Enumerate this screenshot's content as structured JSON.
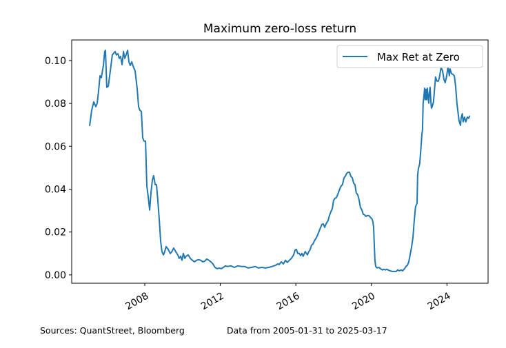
{
  "chart_data": {
    "type": "line",
    "title": "Maximum zero-loss return",
    "xlabel": "",
    "ylabel": "",
    "xlim": [
      2004.13,
      2026.18
    ],
    "ylim": [
      -0.0039,
      0.1096
    ],
    "xticks": [
      2008,
      2012,
      2016,
      2020,
      2024
    ],
    "xtick_labels": [
      "2008",
      "2012",
      "2016",
      "2020",
      "2024"
    ],
    "yticks": [
      0.0,
      0.02,
      0.04,
      0.06,
      0.08,
      0.1
    ],
    "ytick_labels": [
      "0.00",
      "0.02",
      "0.04",
      "0.06",
      "0.08",
      "0.10"
    ],
    "grid": false,
    "legend_position": "top-right",
    "series": [
      {
        "name": "Max Ret at Zero",
        "color": "#1f77b4",
        "x": [
          2005.08,
          2005.19,
          2005.3,
          2005.41,
          2005.48,
          2005.55,
          2005.63,
          2005.7,
          2005.81,
          2005.88,
          2005.92,
          2005.99,
          2006.07,
          2006.14,
          2006.21,
          2006.28,
          2006.36,
          2006.43,
          2006.5,
          2006.58,
          2006.65,
          2006.72,
          2006.8,
          2006.87,
          2006.94,
          2007.01,
          2007.09,
          2007.16,
          2007.23,
          2007.31,
          2007.38,
          2007.49,
          2007.6,
          2007.67,
          2007.74,
          2007.82,
          2007.89,
          2007.96,
          2008.04,
          2008.11,
          2008.18,
          2008.26,
          2008.33,
          2008.4,
          2008.47,
          2008.55,
          2008.62,
          2008.69,
          2008.77,
          2008.84,
          2008.91,
          2008.99,
          2009.06,
          2009.13,
          2009.24,
          2009.35,
          2009.42,
          2009.53,
          2009.64,
          2009.75,
          2009.82,
          2009.9,
          2009.97,
          2010.04,
          2010.12,
          2010.19,
          2010.3,
          2010.41,
          2010.52,
          2010.63,
          2010.74,
          2010.85,
          2010.96,
          2011.07,
          2011.18,
          2011.28,
          2011.39,
          2011.5,
          2011.61,
          2011.72,
          2011.83,
          2011.94,
          2012.05,
          2012.16,
          2012.27,
          2012.38,
          2012.56,
          2012.74,
          2012.93,
          2013.11,
          2013.29,
          2013.47,
          2013.66,
          2013.84,
          2014.02,
          2014.2,
          2014.39,
          2014.57,
          2014.75,
          2014.93,
          2015.04,
          2015.12,
          2015.23,
          2015.34,
          2015.45,
          2015.55,
          2015.66,
          2015.77,
          2015.88,
          2015.96,
          2016.03,
          2016.1,
          2016.18,
          2016.25,
          2016.32,
          2016.39,
          2016.5,
          2016.61,
          2016.69,
          2016.76,
          2016.83,
          2016.91,
          2016.98,
          2017.09,
          2017.2,
          2017.27,
          2017.38,
          2017.45,
          2017.53,
          2017.6,
          2017.71,
          2017.78,
          2017.85,
          2017.93,
          2018.0,
          2018.07,
          2018.15,
          2018.22,
          2018.33,
          2018.4,
          2018.47,
          2018.55,
          2018.62,
          2018.69,
          2018.77,
          2018.84,
          2018.91,
          2018.99,
          2019.06,
          2019.13,
          2019.2,
          2019.28,
          2019.35,
          2019.42,
          2019.5,
          2019.57,
          2019.64,
          2019.72,
          2019.79,
          2019.86,
          2019.93,
          2020.04,
          2020.08,
          2020.12,
          2020.15,
          2020.19,
          2020.23,
          2020.3,
          2020.37,
          2020.45,
          2020.52,
          2020.59,
          2020.66,
          2020.74,
          2020.81,
          2020.88,
          2020.99,
          2021.1,
          2021.21,
          2021.32,
          2021.39,
          2021.47,
          2021.58,
          2021.65,
          2021.76,
          2021.83,
          2021.91,
          2021.98,
          2022.05,
          2022.12,
          2022.2,
          2022.27,
          2022.34,
          2022.42,
          2022.45,
          2022.49,
          2022.56,
          2022.64,
          2022.67,
          2022.71,
          2022.74,
          2022.78,
          2022.82,
          2022.85,
          2022.89,
          2022.93,
          2022.96,
          2023.0,
          2023.04,
          2023.07,
          2023.11,
          2023.15,
          2023.18,
          2023.22,
          2023.29,
          2023.33,
          2023.4,
          2023.47,
          2023.55,
          2023.62,
          2023.69,
          2023.77,
          2023.84,
          2023.91,
          2023.99,
          2024.06,
          2024.09,
          2024.13,
          2024.17,
          2024.24,
          2024.31,
          2024.39,
          2024.46,
          2024.53,
          2024.64,
          2024.72,
          2024.75,
          2024.82,
          2024.86,
          2024.93,
          2025.0,
          2025.08,
          2025.15,
          2025.21
        ],
        "y": [
          0.0695,
          0.0768,
          0.0807,
          0.0785,
          0.0801,
          0.0855,
          0.0929,
          0.092,
          0.0977,
          0.1042,
          0.1048,
          0.0875,
          0.0881,
          0.0929,
          0.0977,
          0.1026,
          0.1035,
          0.1042,
          0.1026,
          0.1032,
          0.101,
          0.1019,
          0.0981,
          0.1042,
          0.101,
          0.1026,
          0.1048,
          0.0994,
          0.0977,
          0.0994,
          0.0974,
          0.0952,
          0.0865,
          0.0785,
          0.0768,
          0.0762,
          0.064,
          0.0624,
          0.0624,
          0.0415,
          0.0367,
          0.0302,
          0.0383,
          0.0441,
          0.0463,
          0.0421,
          0.0421,
          0.035,
          0.0254,
          0.0158,
          0.0109,
          0.0093,
          0.0109,
          0.0132,
          0.0119,
          0.01,
          0.0106,
          0.0125,
          0.0109,
          0.0093,
          0.0077,
          0.0087,
          0.0068,
          0.01,
          0.0077,
          0.0087,
          0.0093,
          0.0077,
          0.0068,
          0.0061,
          0.0068,
          0.0071,
          0.0068,
          0.0061,
          0.0064,
          0.0074,
          0.0068,
          0.0061,
          0.0051,
          0.0035,
          0.0029,
          0.0032,
          0.0029,
          0.0035,
          0.0042,
          0.0039,
          0.0042,
          0.0035,
          0.0042,
          0.0039,
          0.0039,
          0.0032,
          0.0035,
          0.0039,
          0.0032,
          0.0035,
          0.0032,
          0.0035,
          0.0039,
          0.0045,
          0.0051,
          0.0048,
          0.0061,
          0.0051,
          0.0068,
          0.0058,
          0.0068,
          0.0077,
          0.0093,
          0.0116,
          0.0119,
          0.01,
          0.01,
          0.009,
          0.01,
          0.0087,
          0.0109,
          0.0093,
          0.0109,
          0.0119,
          0.0138,
          0.0145,
          0.0158,
          0.0174,
          0.0196,
          0.0212,
          0.0235,
          0.0238,
          0.0222,
          0.0238,
          0.0254,
          0.0277,
          0.0293,
          0.0309,
          0.0347,
          0.0357,
          0.036,
          0.0376,
          0.0402,
          0.0415,
          0.0421,
          0.0453,
          0.046,
          0.0473,
          0.0479,
          0.0479,
          0.046,
          0.0453,
          0.0428,
          0.0421,
          0.0383,
          0.0373,
          0.035,
          0.0315,
          0.0302,
          0.0283,
          0.028,
          0.0273,
          0.0277,
          0.0277,
          0.027,
          0.026,
          0.0248,
          0.0222,
          0.0151,
          0.0068,
          0.0039,
          0.0032,
          0.0035,
          0.0032,
          0.0026,
          0.0023,
          0.0026,
          0.0023,
          0.0026,
          0.0023,
          0.0019,
          0.0016,
          0.0016,
          0.0016,
          0.0023,
          0.0019,
          0.0023,
          0.0019,
          0.0029,
          0.0039,
          0.0045,
          0.0061,
          0.0093,
          0.0125,
          0.0174,
          0.0254,
          0.0318,
          0.0334,
          0.0463,
          0.0495,
          0.0518,
          0.0608,
          0.0653,
          0.0678,
          0.0801,
          0.0833,
          0.0871,
          0.0817,
          0.0865,
          0.0817,
          0.0871,
          0.0833,
          0.0801,
          0.0849,
          0.0875,
          0.0811,
          0.0778,
          0.0785,
          0.0807,
          0.0849,
          0.0923,
          0.0904,
          0.0904,
          0.0929,
          0.0968,
          0.0952,
          0.0913,
          0.0897,
          0.0929,
          0.0971,
          0.0955,
          0.0929,
          0.0961,
          0.0939,
          0.0936,
          0.0929,
          0.0881,
          0.0801,
          0.072,
          0.0698,
          0.073,
          0.0752,
          0.0714,
          0.0736,
          0.0714,
          0.0736,
          0.073,
          0.0743
        ]
      }
    ]
  },
  "footer": {
    "sources": "Sources: QuantStreet, Bloomberg",
    "data_range": "Data from 2005-01-31 to 2025-03-17"
  }
}
